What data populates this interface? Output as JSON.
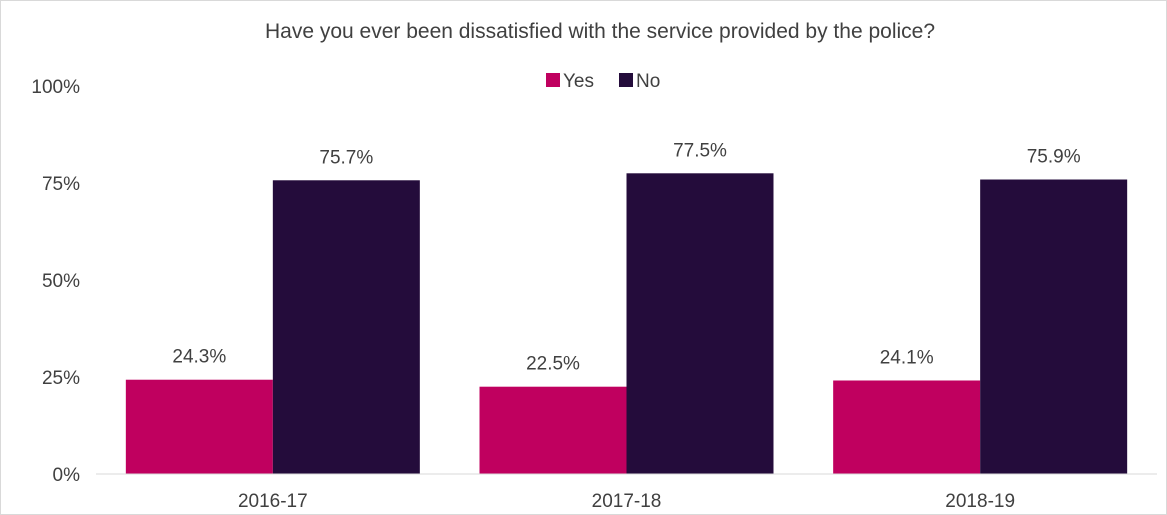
{
  "chart_data": {
    "type": "bar",
    "title": "Have you ever been dissatisfied with the service provided by the police?",
    "categories": [
      "2016-17",
      "2017-18",
      "2018-19"
    ],
    "series": [
      {
        "name": "Yes",
        "values": [
          24.3,
          22.5,
          24.1
        ],
        "labels": [
          "24.3%",
          "22.5%",
          "24.1%"
        ],
        "color": "#C0005F"
      },
      {
        "name": "No",
        "values": [
          75.7,
          77.5,
          75.9
        ],
        "labels": [
          "75.7%",
          "77.5%",
          "75.9%"
        ],
        "color": "#240C3B"
      }
    ],
    "ylim": [
      0,
      100
    ],
    "yticks": [
      0,
      25,
      50,
      75,
      100
    ],
    "ytick_labels": [
      "0%",
      "25%",
      "50%",
      "75%",
      "100%"
    ],
    "legend_position": "top-center",
    "grid": false
  }
}
